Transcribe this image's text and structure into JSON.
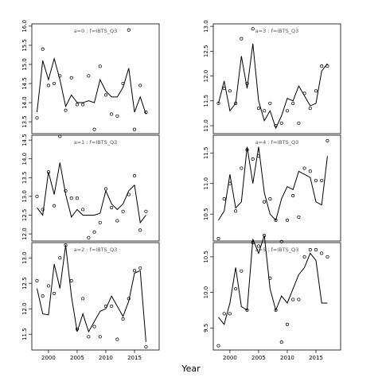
{
  "xlabel": "Year",
  "chart_data": [
    {
      "type": "line",
      "title": "a=0 : f=IBTS_Q3",
      "x": [
        1998,
        1999,
        2000,
        2001,
        2002,
        2003,
        2004,
        2005,
        2006,
        2007,
        2008,
        2009,
        2010,
        2011,
        2012,
        2013,
        2014,
        2015,
        2016,
        2017
      ],
      "xlim": [
        1997.1,
        2019.3
      ],
      "ylim": [
        13.19,
        16.06
      ],
      "yticks": [
        13.5,
        {
          "value": 14,
          "label": "14.0"
        },
        14.5,
        {
          "value": 15,
          "label": "15.0"
        },
        15.5,
        {
          "value": 16,
          "label": "16.0"
        }
      ],
      "series": [
        {
          "mode": "lines",
          "color": "#000000",
          "values": [
            13.75,
            15.1,
            14.6,
            15.15,
            14.6,
            13.9,
            14.2,
            14.0,
            14.0,
            14.05,
            14.0,
            14.6,
            14.3,
            14.15,
            14.15,
            14.4,
            14.9,
            13.75,
            14.15,
            13.7
          ]
        },
        {
          "mode": "markers",
          "color": "#000000",
          "values": [
            13.6,
            15.4,
            14.45,
            14.5,
            14.7,
            13.8,
            14.65,
            13.95,
            13.95,
            14.7,
            13.3,
            14.95,
            14.2,
            13.7,
            13.65,
            14.5,
            15.9,
            13.3,
            14.45,
            13.75
          ]
        }
      ]
    },
    {
      "type": "line",
      "title": "a=1 : f=IBTS_Q3",
      "x": [
        1998,
        1999,
        2000,
        2001,
        2002,
        2003,
        2004,
        2005,
        2006,
        2007,
        2008,
        2009,
        2010,
        2011,
        2012,
        2013,
        2014,
        2015,
        2016,
        2017
      ],
      "xlim": [
        1997.1,
        2019.3
      ],
      "ylim": [
        11.81,
        14.63
      ],
      "yticks": [
        {
          "value": 12,
          "label": "12.0"
        },
        12.5,
        {
          "value": 13,
          "label": "13.0"
        },
        13.5,
        {
          "value": 14,
          "label": "14.0"
        },
        14.5
      ],
      "series": [
        {
          "mode": "lines",
          "color": "#000000",
          "values": [
            12.7,
            12.5,
            13.65,
            13.05,
            13.9,
            13.05,
            12.45,
            12.65,
            12.5,
            12.5,
            12.5,
            12.55,
            13.15,
            12.8,
            12.65,
            12.8,
            13.15,
            13.3,
            12.3,
            12.5
          ]
        },
        {
          "mode": "markers",
          "color": "#000000",
          "values": [
            13.0,
            12.65,
            13.65,
            12.75,
            14.6,
            13.15,
            12.95,
            12.95,
            12.65,
            11.9,
            12.05,
            12.3,
            13.2,
            12.7,
            12.35,
            12.6,
            13.05,
            13.55,
            12.1,
            12.6
          ]
        }
      ]
    },
    {
      "type": "line",
      "title": "a=2 : f=IBTS_Q3",
      "x": [
        1998,
        1999,
        2000,
        2001,
        2002,
        2003,
        2004,
        2005,
        2006,
        2007,
        2008,
        2009,
        2010,
        2011,
        2012,
        2013,
        2014,
        2015,
        2016,
        2017
      ],
      "xlim": [
        1997.1,
        2019.3
      ],
      "ylim": [
        11.19,
        13.3
      ],
      "xticks": [
        2000,
        2005,
        2010,
        2015
      ],
      "yticks": [
        11.5,
        {
          "value": 12,
          "label": "12.0"
        },
        12.5,
        {
          "value": 13,
          "label": "13.0"
        }
      ],
      "series": [
        {
          "mode": "lines",
          "color": "#000000",
          "values": [
            12.4,
            11.9,
            11.88,
            12.88,
            12.4,
            13.25,
            12.25,
            11.55,
            11.9,
            11.55,
            11.75,
            11.95,
            12.0,
            12.25,
            12.05,
            11.85,
            12.15,
            12.7,
            12.75,
            11.35
          ]
        },
        {
          "mode": "markers",
          "color": "#000000",
          "values": [
            12.55,
            12.25,
            12.45,
            12.3,
            13.0,
            13.25,
            12.55,
            11.6,
            12.2,
            11.45,
            11.65,
            11.45,
            12.05,
            12.05,
            11.4,
            11.8,
            12.2,
            12.75,
            12.8,
            11.25
          ]
        }
      ]
    },
    {
      "type": "line",
      "title": "a=3 : f=IBTS_Q3",
      "x": [
        1998,
        1999,
        2000,
        2001,
        2002,
        2003,
        2004,
        2005,
        2006,
        2007,
        2008,
        2009,
        2010,
        2011,
        2012,
        2013,
        2014,
        2015,
        2016,
        2017
      ],
      "xlim": [
        1997.1,
        2019.3
      ],
      "ylim": [
        10.84,
        13.05
      ],
      "yticks": [
        {
          "value": 11,
          "label": "11.0"
        },
        11.5,
        {
          "value": 12,
          "label": "12.0"
        },
        12.5,
        {
          "value": 13,
          "label": "13.0"
        }
      ],
      "series": [
        {
          "mode": "lines",
          "color": "#000000",
          "values": [
            11.45,
            11.9,
            11.3,
            11.45,
            12.4,
            11.75,
            12.65,
            11.5,
            11.1,
            11.3,
            10.95,
            11.2,
            11.55,
            11.5,
            11.8,
            11.6,
            11.4,
            11.45,
            12.1,
            12.25
          ]
        },
        {
          "mode": "markers",
          "color": "#000000",
          "values": [
            11.45,
            11.75,
            11.7,
            11.45,
            12.75,
            11.85,
            12.95,
            11.35,
            11.3,
            11.45,
            11.0,
            11.05,
            11.3,
            11.45,
            11.05,
            11.65,
            11.35,
            11.7,
            12.2,
            12.2
          ]
        }
      ]
    },
    {
      "type": "line",
      "title": "a=4 : f=IBTS_Q3",
      "x": [
        1998,
        1999,
        2000,
        2001,
        2002,
        2003,
        2004,
        2005,
        2006,
        2007,
        2008,
        2009,
        2010,
        2011,
        2012,
        2013,
        2014,
        2015,
        2016,
        2017
      ],
      "xlim": [
        1997.1,
        2019.3
      ],
      "ylim": [
        10.06,
        11.79
      ],
      "yticks": [
        10.5,
        {
          "value": 11,
          "label": "11.0"
        },
        11.5
      ],
      "series": [
        {
          "mode": "lines",
          "color": "#000000",
          "values": [
            10.4,
            10.55,
            11.15,
            10.6,
            10.7,
            11.6,
            11.0,
            11.6,
            10.85,
            10.5,
            10.4,
            10.75,
            10.95,
            10.9,
            11.2,
            11.15,
            11.1,
            10.7,
            10.65,
            11.45
          ]
        },
        {
          "mode": "markers",
          "color": "#000000",
          "values": [
            10.1,
            10.75,
            11.0,
            10.55,
            11.25,
            11.55,
            11.4,
            11.45,
            10.7,
            10.75,
            10.4,
            10.05,
            10.4,
            10.8,
            10.45,
            11.25,
            11.2,
            11.05,
            11.05,
            11.7
          ]
        }
      ]
    },
    {
      "type": "line",
      "title": "a=5 : f=IBTS_Q3",
      "x": [
        1998,
        1999,
        2000,
        2001,
        2002,
        2003,
        2004,
        2005,
        2006,
        2007,
        2008,
        2009,
        2010,
        2011,
        2012,
        2013,
        2014,
        2015,
        2016,
        2017
      ],
      "xlim": [
        1997.1,
        2019.3
      ],
      "ylim": [
        9.19,
        10.7
      ],
      "xticks": [
        2000,
        2005,
        2010,
        2015
      ],
      "yticks": [
        9.5,
        {
          "value": 10,
          "label": "10.0"
        },
        10.5
      ],
      "series": [
        {
          "mode": "lines",
          "color": "#000000",
          "values": [
            9.65,
            9.55,
            9.85,
            10.35,
            9.8,
            9.75,
            10.75,
            10.55,
            10.8,
            10.05,
            9.75,
            9.95,
            9.85,
            10.05,
            10.25,
            10.35,
            10.55,
            10.45,
            9.85,
            9.85
          ]
        },
        {
          "mode": "markers",
          "color": "#000000",
          "values": [
            9.25,
            9.7,
            9.7,
            10.05,
            10.3,
            9.75,
            10.7,
            10.65,
            10.8,
            10.2,
            9.75,
            9.3,
            9.55,
            9.9,
            9.9,
            10.5,
            10.6,
            10.6,
            10.55,
            10.5
          ]
        }
      ]
    }
  ]
}
